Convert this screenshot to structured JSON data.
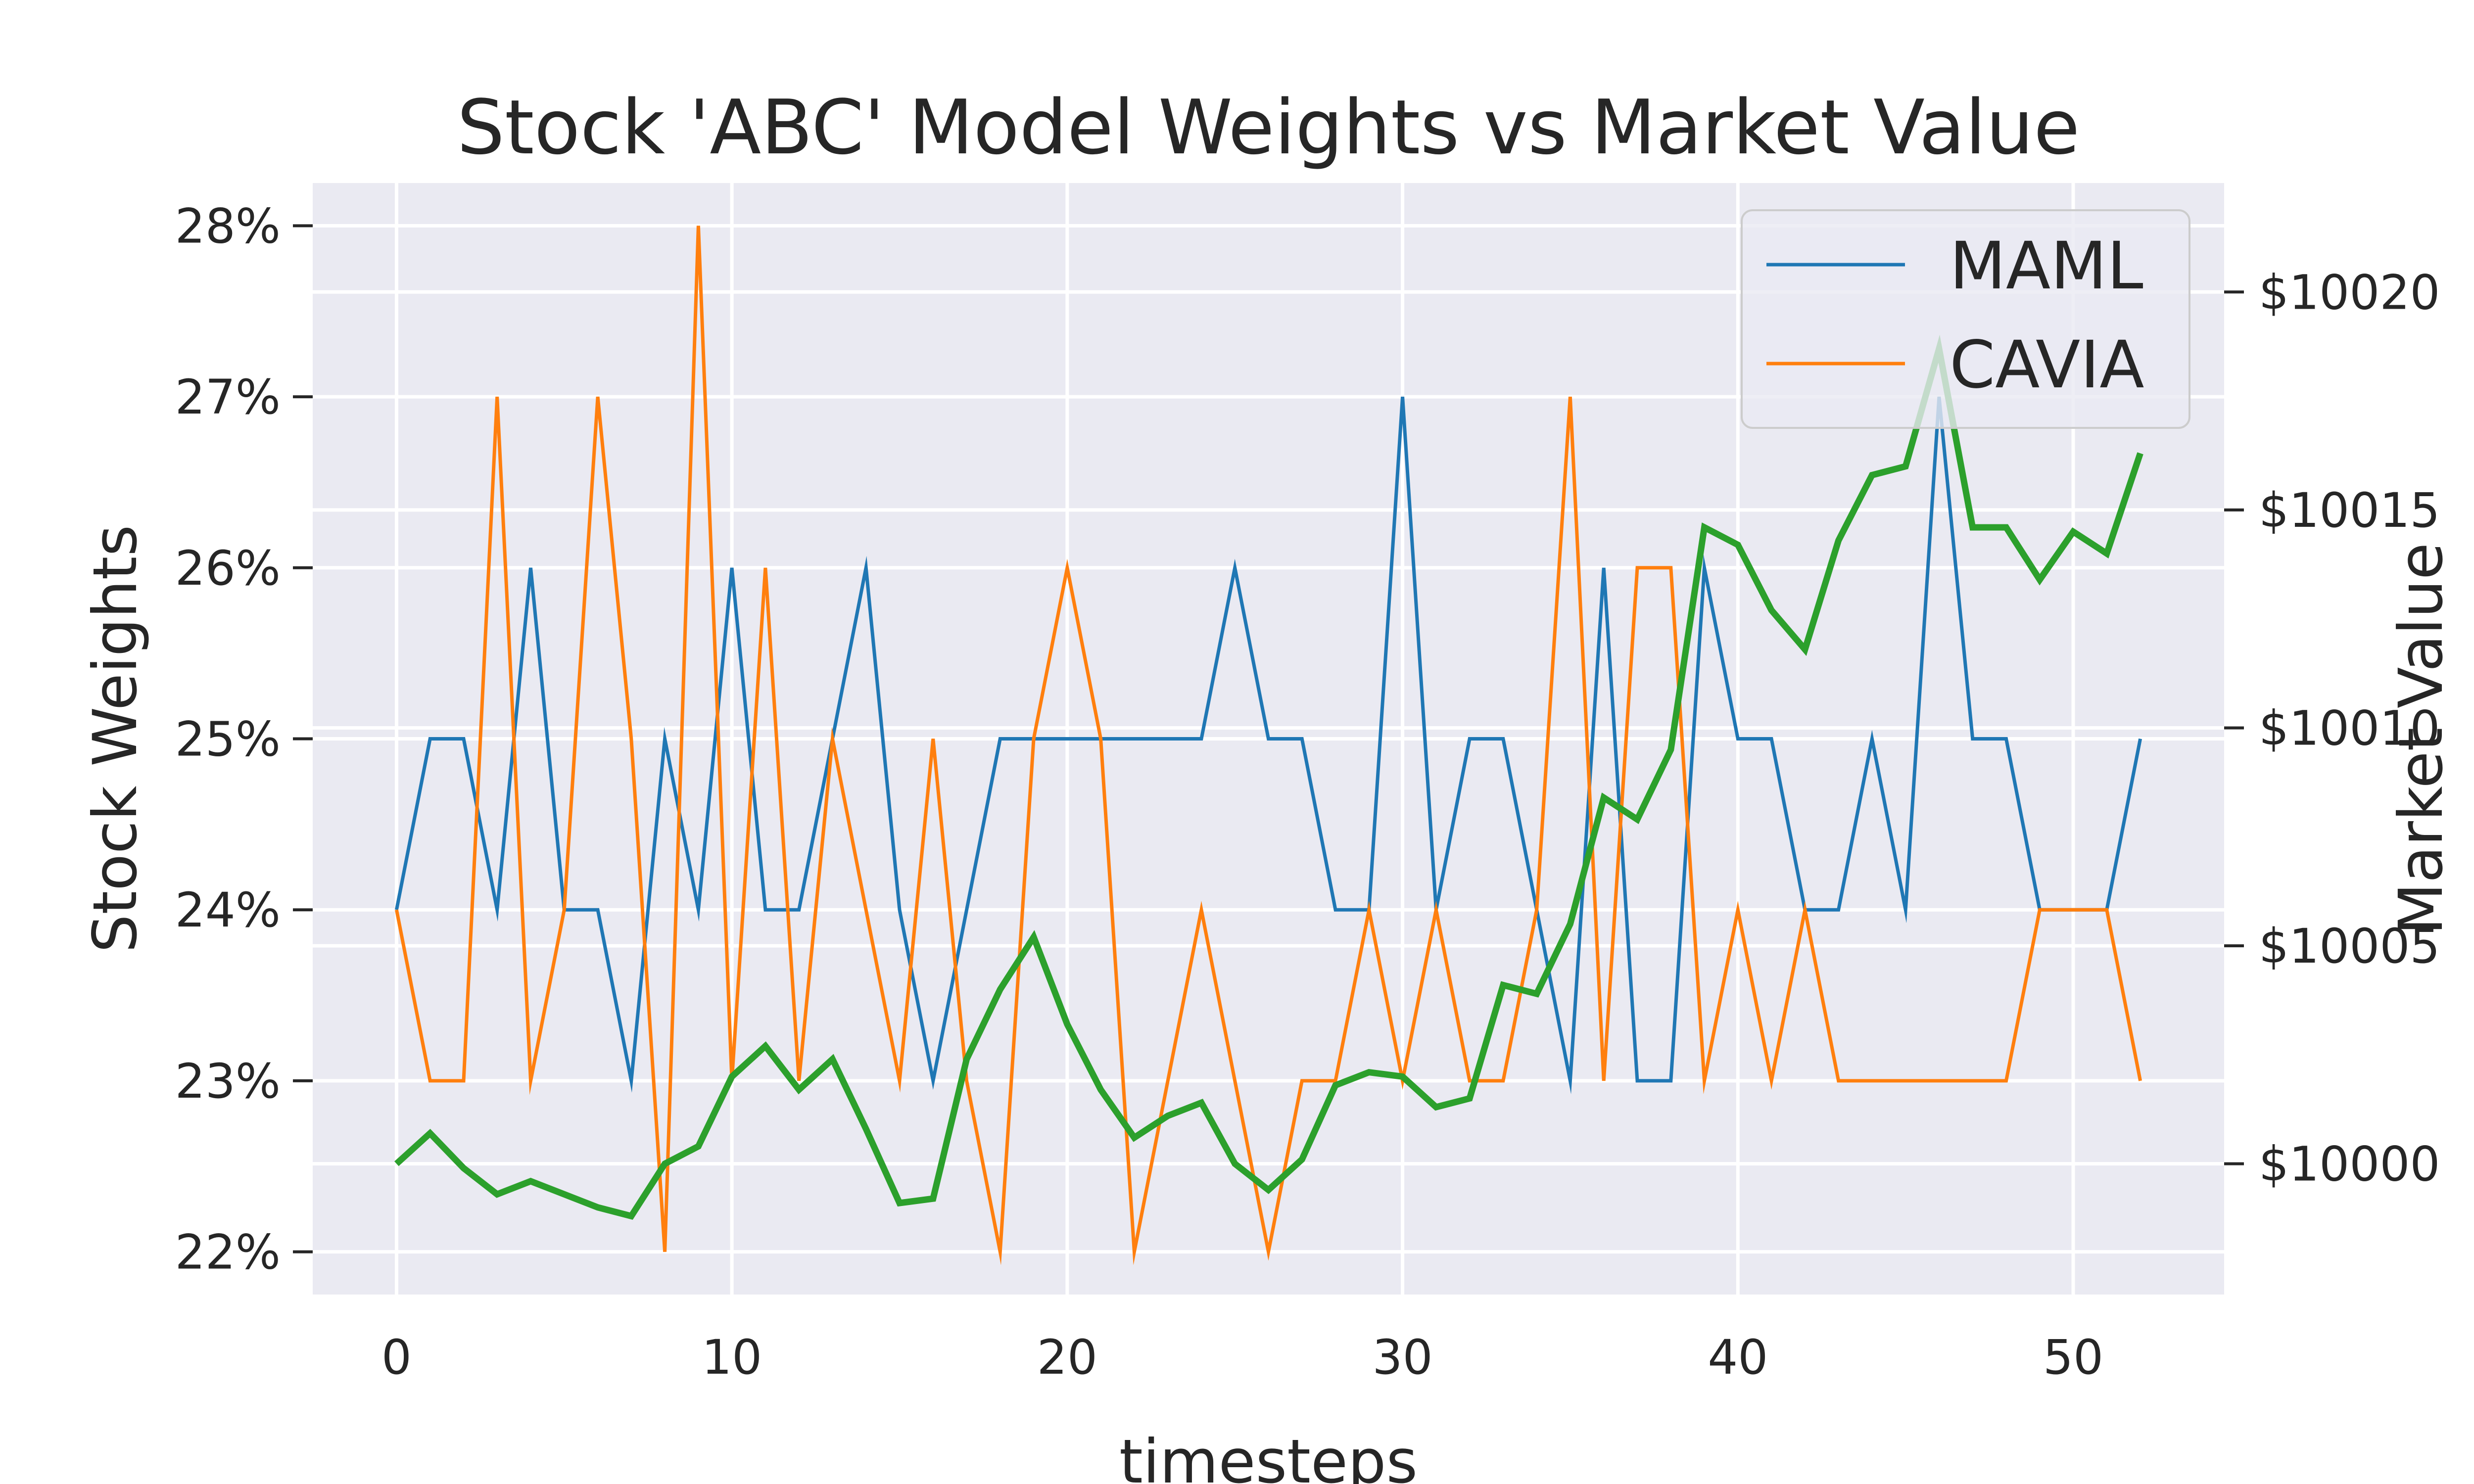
{
  "chart_data": {
    "type": "line",
    "title": "Stock 'ABC' Model Weights vs Market Value",
    "xlabel": "timesteps",
    "ylabel": "Stock Weights",
    "y2label": "Market Value",
    "xlim": [
      -2.5,
      54.5
    ],
    "ylim": [
      0.2175,
      0.2825
    ],
    "y2lim": [
      9997.0,
      10022.5
    ],
    "grid": true,
    "legend_position": "upper-right",
    "x_ticks": [
      0,
      10,
      20,
      30,
      40,
      50
    ],
    "x_tick_labels": [
      "0",
      "10",
      "20",
      "30",
      "40",
      "50"
    ],
    "y_ticks": [
      0.22,
      0.23,
      0.24,
      0.25,
      0.26,
      0.27,
      0.28
    ],
    "y_tick_labels": [
      "22%",
      "23%",
      "24%",
      "25%",
      "26%",
      "27%",
      "28%"
    ],
    "y2_ticks": [
      10000,
      10005,
      10010,
      10015,
      10020
    ],
    "y2_tick_labels": [
      "$10000",
      "$10005",
      "$10010",
      "$10015",
      "$10020"
    ],
    "x": [
      0,
      1,
      2,
      3,
      4,
      5,
      6,
      7,
      8,
      9,
      10,
      11,
      12,
      13,
      14,
      15,
      16,
      17,
      18,
      19,
      20,
      21,
      22,
      23,
      24,
      25,
      26,
      27,
      28,
      29,
      30,
      31,
      32,
      33,
      34,
      35,
      36,
      37,
      38,
      39,
      40,
      41,
      42,
      43,
      44,
      45,
      46,
      47,
      48,
      49,
      50,
      51,
      52
    ],
    "series": [
      {
        "name": "MAML",
        "axis": "left",
        "color": "#1f77b4",
        "values": [
          0.24,
          0.25,
          0.25,
          0.24,
          0.26,
          0.24,
          0.24,
          0.23,
          0.25,
          0.24,
          0.26,
          0.24,
          0.24,
          0.25,
          0.26,
          0.24,
          0.23,
          0.24,
          0.25,
          0.25,
          0.25,
          0.25,
          0.25,
          0.25,
          0.25,
          0.26,
          0.25,
          0.25,
          0.24,
          0.24,
          0.27,
          0.24,
          0.25,
          0.25,
          0.24,
          0.23,
          0.26,
          0.23,
          0.23,
          0.26,
          0.25,
          0.25,
          0.24,
          0.24,
          0.25,
          0.24,
          0.27,
          0.25,
          0.25,
          0.24,
          0.24,
          0.24,
          0.25
        ]
      },
      {
        "name": "CAVIA",
        "axis": "left",
        "color": "#ff7f0e",
        "values": [
          0.24,
          0.23,
          0.23,
          0.27,
          0.23,
          0.24,
          0.27,
          0.25,
          0.22,
          0.28,
          0.23,
          0.26,
          0.23,
          0.25,
          0.24,
          0.23,
          0.25,
          0.23,
          0.22,
          0.25,
          0.26,
          0.25,
          0.22,
          0.23,
          0.24,
          0.23,
          0.22,
          0.23,
          0.23,
          0.24,
          0.23,
          0.24,
          0.23,
          0.23,
          0.24,
          0.27,
          0.23,
          0.26,
          0.26,
          0.23,
          0.24,
          0.23,
          0.24,
          0.23,
          0.23,
          0.23,
          0.23,
          0.23,
          0.23,
          0.24,
          0.24,
          0.24,
          0.23
        ]
      },
      {
        "name": "Market Value",
        "axis": "right",
        "color": "#2ca02c",
        "values": [
          10000.0,
          10000.7,
          9999.9,
          9999.3,
          9999.6,
          9999.3,
          9999.0,
          9998.8,
          10000.0,
          10000.4,
          10002.0,
          10002.7,
          10001.7,
          10002.4,
          10000.8,
          9999.1,
          9999.2,
          10002.4,
          10004.0,
          10005.2,
          10003.2,
          10001.7,
          10000.6,
          10001.1,
          10001.4,
          10000.0,
          9999.4,
          10000.1,
          10001.8,
          10002.1,
          10002.0,
          10001.3,
          10001.5,
          10004.1,
          10003.9,
          10005.5,
          10008.4,
          10007.9,
          10009.5,
          10014.6,
          10014.2,
          10012.7,
          10011.8,
          10014.3,
          10015.8,
          10016.0,
          10018.7,
          10014.6,
          10014.6,
          10013.4,
          10014.5,
          10014.0,
          10016.3
        ]
      }
    ]
  }
}
